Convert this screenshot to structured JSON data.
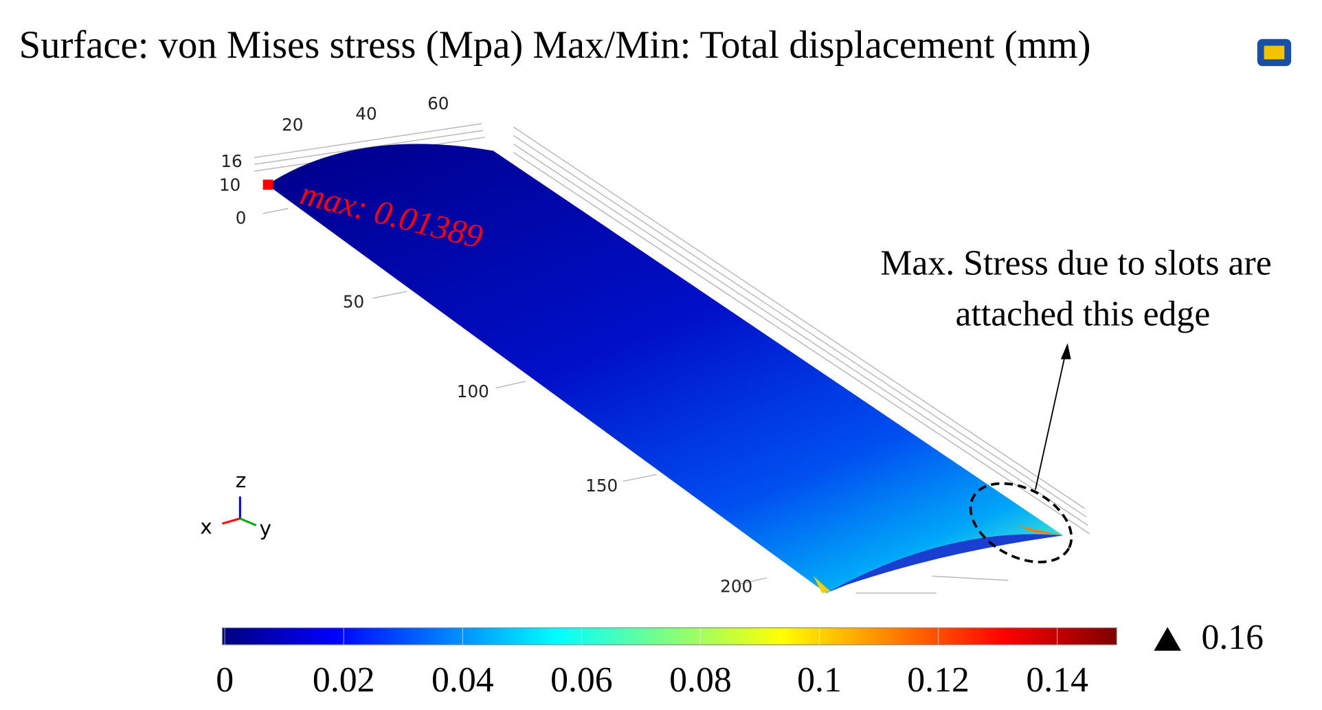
{
  "title": "Surface: von Mises stress (Mpa)  Max/Min: Total displacement (mm)",
  "axis_labels": {
    "top": [
      "20",
      "40",
      "60"
    ],
    "left": [
      "16",
      "10",
      "0"
    ],
    "length": [
      "50",
      "100",
      "150",
      "200"
    ]
  },
  "max_label": "max: 0.01389",
  "annotation": [
    "Max. Stress due to slots are",
    "attached this edge"
  ],
  "triad": {
    "z": "z",
    "x": "x",
    "y": "y"
  },
  "colorbar": {
    "ticks": [
      0,
      0.02,
      0.04,
      0.06,
      0.08,
      0.1,
      0.12,
      0.14
    ],
    "max": 0.16
  }
}
